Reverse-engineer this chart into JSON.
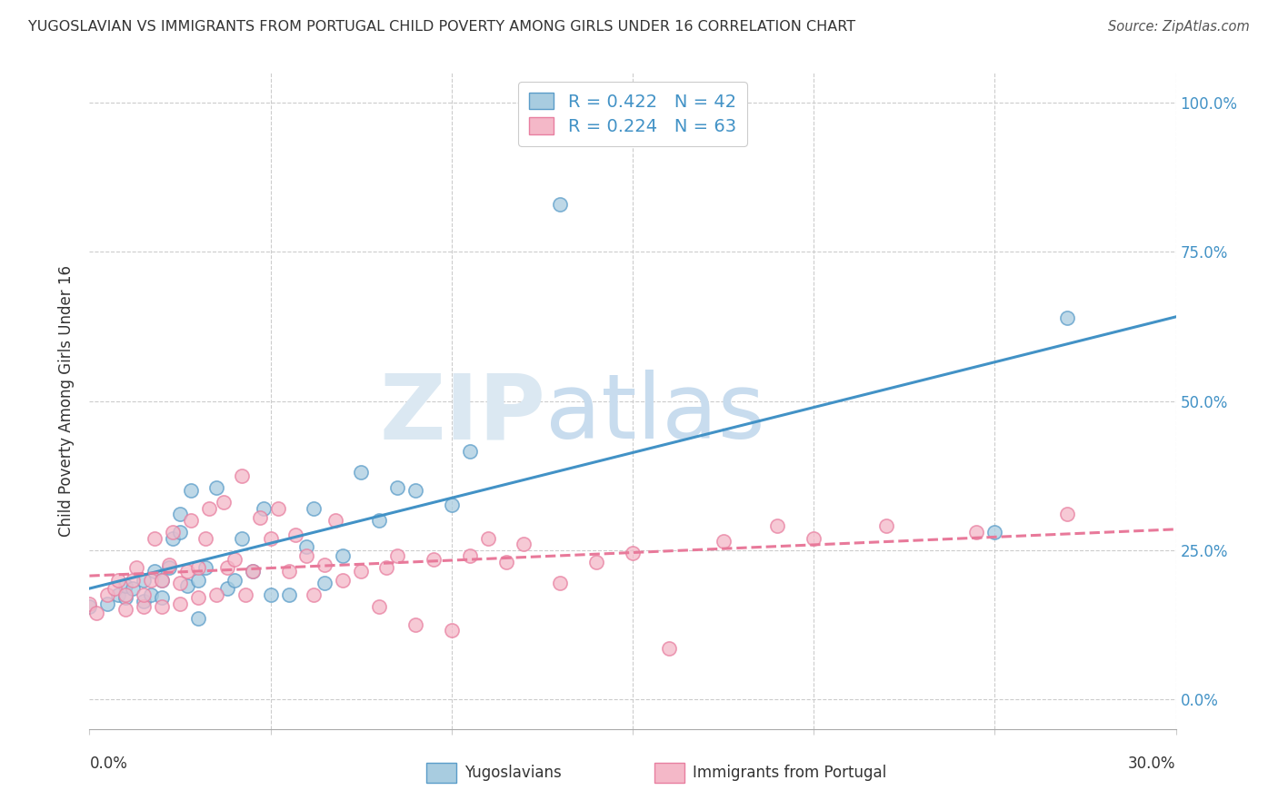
{
  "title": "YUGOSLAVIAN VS IMMIGRANTS FROM PORTUGAL CHILD POVERTY AMONG GIRLS UNDER 16 CORRELATION CHART",
  "source": "Source: ZipAtlas.com",
  "ylabel": "Child Poverty Among Girls Under 16",
  "xlim": [
    0.0,
    0.3
  ],
  "ylim": [
    -0.05,
    1.05
  ],
  "ytick_vals": [
    0.0,
    0.25,
    0.5,
    0.75,
    1.0
  ],
  "ytick_labels": [
    "0.0%",
    "25.0%",
    "50.0%",
    "75.0%",
    "100.0%"
  ],
  "xtick_vals": [
    0.0,
    0.05,
    0.1,
    0.15,
    0.2,
    0.25,
    0.3
  ],
  "r_yugo": 0.422,
  "n_yugo": 42,
  "r_port": 0.224,
  "n_port": 63,
  "color_yugo_fill": "#a8cce0",
  "color_yugo_edge": "#5b9dc9",
  "color_yugo_line": "#4292c6",
  "color_port_fill": "#f4b8c8",
  "color_port_edge": "#e87fa0",
  "color_port_line": "#e8799a",
  "legend_label_yugo": "Yugoslavians",
  "legend_label_port": "Immigrants from Portugal",
  "watermark_zip_color": "#dbe8f2",
  "watermark_atlas_color": "#c8dcee",
  "yugo_x": [
    0.0,
    0.005,
    0.008,
    0.01,
    0.01,
    0.012,
    0.015,
    0.015,
    0.017,
    0.018,
    0.02,
    0.02,
    0.022,
    0.023,
    0.025,
    0.025,
    0.027,
    0.028,
    0.03,
    0.03,
    0.032,
    0.035,
    0.038,
    0.04,
    0.042,
    0.045,
    0.048,
    0.05,
    0.055,
    0.06,
    0.062,
    0.065,
    0.07,
    0.075,
    0.08,
    0.085,
    0.09,
    0.1,
    0.105,
    0.13,
    0.25,
    0.27
  ],
  "yugo_y": [
    0.155,
    0.16,
    0.175,
    0.17,
    0.19,
    0.185,
    0.165,
    0.2,
    0.175,
    0.215,
    0.17,
    0.2,
    0.22,
    0.27,
    0.28,
    0.31,
    0.19,
    0.35,
    0.135,
    0.2,
    0.22,
    0.355,
    0.185,
    0.2,
    0.27,
    0.215,
    0.32,
    0.175,
    0.175,
    0.255,
    0.32,
    0.195,
    0.24,
    0.38,
    0.3,
    0.355,
    0.35,
    0.325,
    0.415,
    0.83,
    0.28,
    0.64
  ],
  "port_x": [
    0.0,
    0.002,
    0.005,
    0.007,
    0.008,
    0.01,
    0.01,
    0.012,
    0.013,
    0.015,
    0.015,
    0.017,
    0.018,
    0.02,
    0.02,
    0.022,
    0.023,
    0.025,
    0.025,
    0.027,
    0.028,
    0.03,
    0.03,
    0.032,
    0.033,
    0.035,
    0.037,
    0.038,
    0.04,
    0.042,
    0.043,
    0.045,
    0.047,
    0.05,
    0.052,
    0.055,
    0.057,
    0.06,
    0.062,
    0.065,
    0.068,
    0.07,
    0.075,
    0.08,
    0.082,
    0.085,
    0.09,
    0.095,
    0.1,
    0.105,
    0.11,
    0.115,
    0.12,
    0.13,
    0.14,
    0.15,
    0.16,
    0.175,
    0.19,
    0.2,
    0.22,
    0.245,
    0.27
  ],
  "port_y": [
    0.16,
    0.145,
    0.175,
    0.185,
    0.2,
    0.15,
    0.175,
    0.2,
    0.22,
    0.155,
    0.175,
    0.2,
    0.27,
    0.155,
    0.2,
    0.225,
    0.28,
    0.16,
    0.195,
    0.215,
    0.3,
    0.17,
    0.22,
    0.27,
    0.32,
    0.175,
    0.33,
    0.22,
    0.235,
    0.375,
    0.175,
    0.215,
    0.305,
    0.27,
    0.32,
    0.215,
    0.275,
    0.24,
    0.175,
    0.225,
    0.3,
    0.2,
    0.215,
    0.155,
    0.22,
    0.24,
    0.125,
    0.235,
    0.115,
    0.24,
    0.27,
    0.23,
    0.26,
    0.195,
    0.23,
    0.245,
    0.085,
    0.265,
    0.29,
    0.27,
    0.29,
    0.28,
    0.31
  ]
}
